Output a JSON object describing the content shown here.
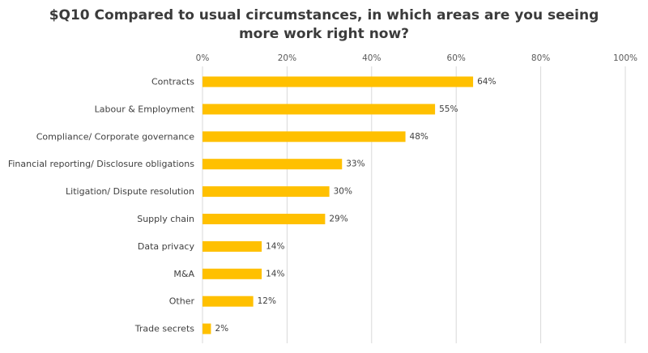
{
  "chart_data": {
    "type": "bar",
    "orientation": "horizontal",
    "title_lines": [
      "$Q10 Compared to usual circumstances, in which areas are you seeing",
      "more work right now?"
    ],
    "categories": [
      "Contracts",
      "Labour & Employment",
      "Compliance/ Corporate governance",
      "Financial reporting/ Disclosure obligations",
      "Litigation/ Dispute resolution",
      "Supply chain",
      "Data privacy",
      "M&A",
      "Other",
      "Trade secrets"
    ],
    "values": [
      64,
      55,
      48,
      33,
      30,
      29,
      14,
      14,
      12,
      2
    ],
    "data_labels": [
      "64%",
      "55%",
      "48%",
      "33%",
      "30%",
      "29%",
      "14%",
      "14%",
      "12%",
      "2%"
    ],
    "xlim": [
      0,
      100
    ],
    "x_ticks": [
      0,
      20,
      40,
      60,
      80,
      100
    ],
    "x_tick_labels": [
      "0%",
      "20%",
      "40%",
      "60%",
      "80%",
      "100%"
    ],
    "x_axis_position": "top",
    "grid": "vertical",
    "legend": "none",
    "bar_color": "#FFC000",
    "grid_color": "#D9D9D9"
  }
}
